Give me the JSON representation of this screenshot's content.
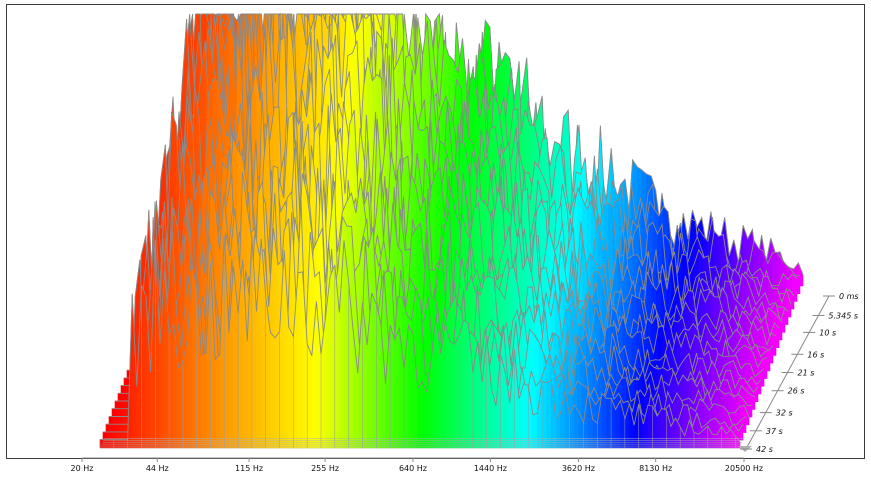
{
  "chart_data": {
    "type": "area",
    "subtype": "3d-waterfall-spectrum",
    "x_axis": {
      "scale": "log",
      "ticks": [
        "20 Hz",
        "44 Hz",
        "115 Hz",
        "255 Hz",
        "640 Hz",
        "1440 Hz",
        "3620 Hz",
        "8130 Hz",
        "20500 Hz"
      ],
      "tick_values_hz": [
        20,
        44,
        115,
        255,
        640,
        1440,
        3620,
        8130,
        20500
      ]
    },
    "z_axis": {
      "ticks": [
        "0 ms",
        "5.345 s",
        "10 s",
        "16 s",
        "21 s",
        "26 s",
        "32 s",
        "37 s",
        "42 s"
      ],
      "tick_values_s": [
        0,
        5.345,
        10,
        16,
        21,
        26,
        32,
        37,
        42
      ]
    },
    "color_map": [
      "#ff0000",
      "#ff8800",
      "#ffff00",
      "#00ff00",
      "#00ffff",
      "#0000ff",
      "#ff00ff"
    ],
    "envelope_peak_amplitude": [
      0.2,
      0.92,
      0.88,
      0.96,
      1.0,
      0.9,
      0.72,
      0.62,
      0.48,
      0.37,
      0.27,
      0.2,
      0.14,
      0.07
    ]
  }
}
